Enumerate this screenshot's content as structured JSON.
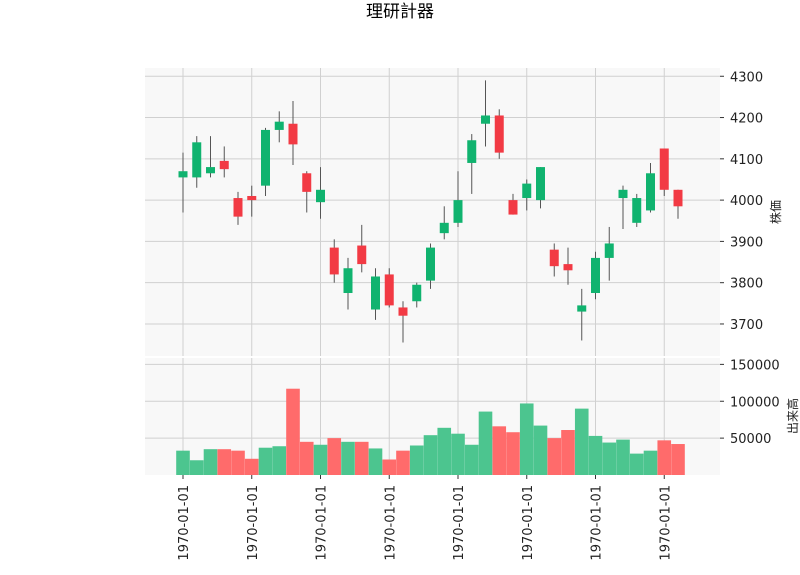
{
  "chart_data": {
    "type": "candlestick",
    "title": "理研計器",
    "colors": {
      "up": "#10b36f",
      "down": "#f23a44",
      "up_vol": "#4cc58f",
      "down_vol": "#ff6b6b",
      "wick": "#555555",
      "grid": "#d0d0d0",
      "panel_bg": "#f8f8f8"
    },
    "grid": true,
    "price_axis": {
      "label": "株価",
      "position": "right",
      "ylim": [
        3620,
        4320
      ],
      "ticks": [
        3700,
        3800,
        3900,
        4000,
        4100,
        4200,
        4300
      ]
    },
    "volume_axis": {
      "label": "出来高",
      "position": "right",
      "ylim": [
        0,
        160000
      ],
      "ticks": [
        50000,
        100000,
        150000
      ],
      "tick_labels": [
        "50000",
        "100000",
        "150000"
      ]
    },
    "x_axis": {
      "tick_labels": [
        "1970-01-01",
        "1970-01-01",
        "1970-01-01",
        "1970-01-01",
        "1970-01-01",
        "1970-01-01",
        "1970-01-01",
        "1970-01-01"
      ],
      "tick_positions": [
        0,
        5,
        10,
        15,
        20,
        25,
        30,
        35
      ],
      "label_rotation": 90
    },
    "candles": [
      {
        "open": 4055,
        "high": 4115,
        "low": 3970,
        "close": 4070,
        "volume": 33000
      },
      {
        "open": 4055,
        "high": 4155,
        "low": 4030,
        "close": 4140,
        "volume": 20000
      },
      {
        "open": 4065,
        "high": 4155,
        "low": 4055,
        "close": 4080,
        "volume": 35000
      },
      {
        "open": 4095,
        "high": 4130,
        "low": 4055,
        "close": 4075,
        "volume": 35000
      },
      {
        "open": 4005,
        "high": 4020,
        "low": 3940,
        "close": 3960,
        "volume": 33000
      },
      {
        "open": 4010,
        "high": 4035,
        "low": 3960,
        "close": 4000,
        "volume": 22000
      },
      {
        "open": 4035,
        "high": 4175,
        "low": 4010,
        "close": 4170,
        "volume": 37000
      },
      {
        "open": 4170,
        "high": 4215,
        "low": 4140,
        "close": 4190,
        "volume": 39000
      },
      {
        "open": 4185,
        "high": 4240,
        "low": 4085,
        "close": 4135,
        "volume": 117000
      },
      {
        "open": 4065,
        "high": 4070,
        "low": 3970,
        "close": 4020,
        "volume": 45000
      },
      {
        "open": 3995,
        "high": 4080,
        "low": 3955,
        "close": 4025,
        "volume": 41000
      },
      {
        "open": 3885,
        "high": 3905,
        "low": 3800,
        "close": 3820,
        "volume": 50000
      },
      {
        "open": 3775,
        "high": 3860,
        "low": 3735,
        "close": 3835,
        "volume": 45000
      },
      {
        "open": 3890,
        "high": 3940,
        "low": 3825,
        "close": 3845,
        "volume": 45000
      },
      {
        "open": 3735,
        "high": 3835,
        "low": 3710,
        "close": 3815,
        "volume": 36000
      },
      {
        "open": 3820,
        "high": 3835,
        "low": 3740,
        "close": 3745,
        "volume": 21000
      },
      {
        "open": 3740,
        "high": 3755,
        "low": 3655,
        "close": 3720,
        "volume": 33000
      },
      {
        "open": 3755,
        "high": 3800,
        "low": 3740,
        "close": 3795,
        "volume": 40000
      },
      {
        "open": 3805,
        "high": 3895,
        "low": 3785,
        "close": 3885,
        "volume": 54000
      },
      {
        "open": 3920,
        "high": 3985,
        "low": 3905,
        "close": 3945,
        "volume": 64000
      },
      {
        "open": 3945,
        "high": 4070,
        "low": 3935,
        "close": 4000,
        "volume": 56000
      },
      {
        "open": 4090,
        "high": 4160,
        "low": 4015,
        "close": 4145,
        "volume": 41000
      },
      {
        "open": 4185,
        "high": 4290,
        "low": 4130,
        "close": 4205,
        "volume": 86000
      },
      {
        "open": 4205,
        "high": 4220,
        "low": 4100,
        "close": 4115,
        "volume": 66000
      },
      {
        "open": 4000,
        "high": 4015,
        "low": 3965,
        "close": 3965,
        "volume": 58000
      },
      {
        "open": 4005,
        "high": 4050,
        "low": 3975,
        "close": 4040,
        "volume": 97000
      },
      {
        "open": 4000,
        "high": 4080,
        "low": 3980,
        "close": 4080,
        "volume": 67000
      },
      {
        "open": 3880,
        "high": 3895,
        "low": 3815,
        "close": 3840,
        "volume": 50000
      },
      {
        "open": 3845,
        "high": 3885,
        "low": 3795,
        "close": 3830,
        "volume": 61000
      },
      {
        "open": 3730,
        "high": 3785,
        "low": 3660,
        "close": 3745,
        "volume": 90000
      },
      {
        "open": 3775,
        "high": 3875,
        "low": 3760,
        "close": 3860,
        "volume": 53000
      },
      {
        "open": 3860,
        "high": 3935,
        "low": 3805,
        "close": 3895,
        "volume": 44000
      },
      {
        "open": 4005,
        "high": 4035,
        "low": 3930,
        "close": 4025,
        "volume": 48000
      },
      {
        "open": 3945,
        "high": 4015,
        "low": 3935,
        "close": 4005,
        "volume": 29000
      },
      {
        "open": 3975,
        "high": 4090,
        "low": 3970,
        "close": 4065,
        "volume": 33000
      },
      {
        "open": 4125,
        "high": 4125,
        "low": 4010,
        "close": 4025,
        "volume": 47000
      },
      {
        "open": 4025,
        "high": 4025,
        "low": 3955,
        "close": 3985,
        "volume": 42000
      }
    ]
  }
}
